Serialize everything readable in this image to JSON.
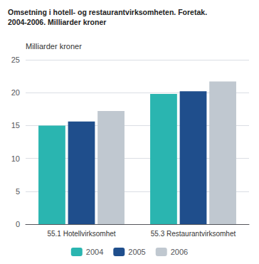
{
  "chart_data": {
    "type": "bar",
    "title": "Omsetning i hotell- og restaurantvirksomheten. Foretak.",
    "subtitle": "2004-2006. Milliarder kroner",
    "ylabel": "Milliarder kroner",
    "categories": [
      "55.1 Hotellvirksomhet",
      "55.3 Restaurantvirksomhet"
    ],
    "series": [
      {
        "name": "2004",
        "color": "#2ab5b0",
        "values": [
          15.0,
          19.8
        ]
      },
      {
        "name": "2005",
        "color": "#1f4e8c",
        "values": [
          15.6,
          20.2
        ]
      },
      {
        "name": "2006",
        "color": "#c0c8d0",
        "values": [
          17.2,
          21.7
        ]
      }
    ],
    "ylim": [
      0,
      25
    ],
    "yticks": [
      0,
      5,
      10,
      15,
      20,
      25
    ],
    "grid": true,
    "legend": "bottom"
  }
}
